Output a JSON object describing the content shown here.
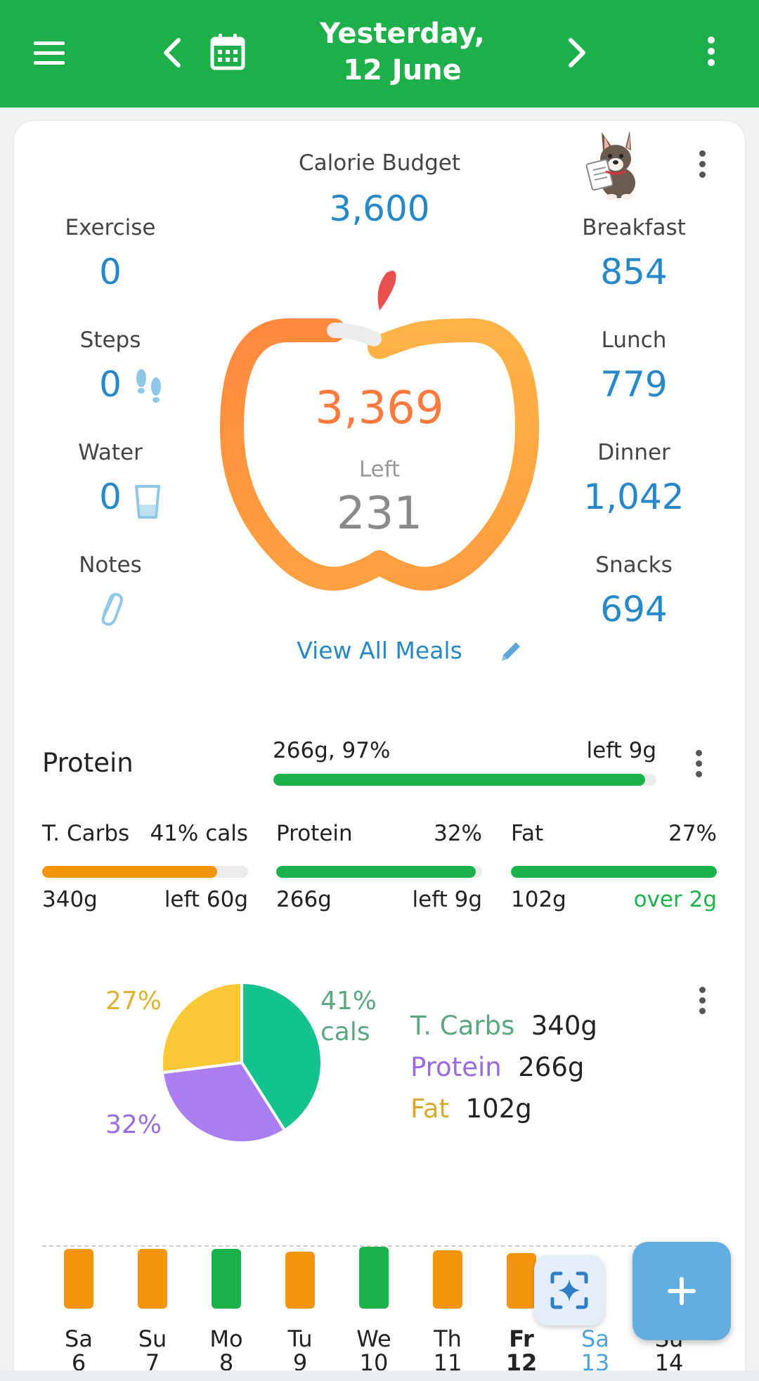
{
  "header": {
    "title_line1": "Yesterday,",
    "title_line2": "12 June",
    "menu_icon": "hamburger-icon",
    "prev_icon": "chevron-left-icon",
    "calendar_icon": "calendar-icon",
    "next_icon": "chevron-right-icon",
    "more_icon": "more-vert-icon"
  },
  "summary": {
    "budget_label": "Calorie Budget",
    "budget_value": "3,600",
    "consumed_value": "3,369",
    "left_label": "Left",
    "left_value": "231",
    "view_all_label": "View All Meals",
    "left_stats": [
      {
        "label": "Exercise",
        "value": "0"
      },
      {
        "label": "Steps",
        "value": "0"
      },
      {
        "label": "Water",
        "value": "0"
      },
      {
        "label": "Notes",
        "value": ""
      }
    ],
    "meals": [
      {
        "label": "Breakfast",
        "value": "854"
      },
      {
        "label": "Lunch",
        "value": "779"
      },
      {
        "label": "Dinner",
        "value": "1,042"
      },
      {
        "label": "Snacks",
        "value": "694"
      }
    ]
  },
  "protein_goal": {
    "label": "Protein",
    "value_text": "266g, 97%",
    "left_text": "left 9g",
    "progress": 0.97
  },
  "macros": [
    {
      "name": "T. Carbs",
      "pct": "41% cals",
      "amount": "340g",
      "remaining": "left 60g",
      "progress": 0.85,
      "color": "#f5950f"
    },
    {
      "name": "Protein",
      "pct": "32%",
      "amount": "266g",
      "remaining": "left 9g",
      "progress": 0.97,
      "color": "#19b34a"
    },
    {
      "name": "Fat",
      "pct": "27%",
      "amount": "102g",
      "remaining": "over 2g",
      "progress": 1.0,
      "color": "#19b34a"
    }
  ],
  "chart_data": {
    "type": "pie",
    "slices": [
      {
        "label": "T. Carbs",
        "value": 41,
        "amount": "340g",
        "color": "#13c28c"
      },
      {
        "label": "Protein",
        "value": 32,
        "amount": "266g",
        "color": "#a97ef0"
      },
      {
        "label": "Fat",
        "value": 27,
        "amount": "102g",
        "color": "#fbc935"
      }
    ],
    "label_carbs_pct": "41%",
    "label_carbs_unit": "cals",
    "label_protein_pct": "32%",
    "label_fat_pct": "27%"
  },
  "week": [
    {
      "day": "Sa",
      "date": "6",
      "color": "#f5950f",
      "level": 0.92
    },
    {
      "day": "Su",
      "date": "7",
      "color": "#f5950f",
      "level": 0.92
    },
    {
      "day": "Mo",
      "date": "8",
      "color": "#19b34a",
      "level": 0.92
    },
    {
      "day": "Tu",
      "date": "9",
      "color": "#f5950f",
      "level": 0.88
    },
    {
      "day": "We",
      "date": "10",
      "color": "#19b34a",
      "level": 0.96
    },
    {
      "day": "Th",
      "date": "11",
      "color": "#f5950f",
      "level": 0.9
    },
    {
      "day": "Fr",
      "date": "12",
      "color": "#f5950f",
      "level": 0.86
    },
    {
      "day": "Sa",
      "date": "13",
      "color": "",
      "level": 0
    },
    {
      "day": "Su",
      "date": "14",
      "color": "",
      "level": 0
    }
  ],
  "colors": {
    "brand_green": "#1db04a",
    "value_blue": "#2488c9",
    "ring_orange": "#ff8a3d",
    "fab_blue": "#62aee0"
  }
}
